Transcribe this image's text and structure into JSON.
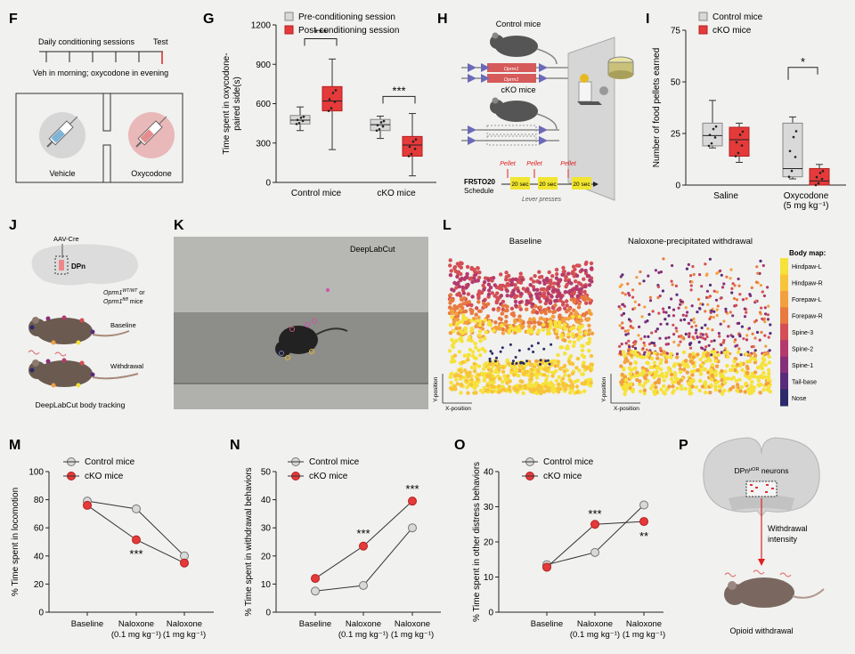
{
  "panels": {
    "F": {
      "letter": "F",
      "timeline_label": "Daily conditioning sessions",
      "test_label": "Test",
      "schedule_label": "Veh in morning; oxycodone in evening",
      "left_chamber": "Vehicle",
      "right_chamber": "Oxycodone"
    },
    "G": {
      "letter": "G",
      "significance": [
        "***",
        "***"
      ]
    },
    "H": {
      "letter": "H",
      "control_label": "Control mice",
      "cko_label": "cKO mice",
      "gene_labels": [
        "Oprm1",
        "Oprm1"
      ],
      "schedule_name": [
        "FR5TO20",
        "Schedule"
      ],
      "pellet_label": "Pellet",
      "timeout_label": "20 sec",
      "lever_label": "Lever presses"
    },
    "I": {
      "letter": "I",
      "significance": [
        "*"
      ]
    },
    "J": {
      "letter": "J",
      "virus_label": "AAV-Cre",
      "region_label": "DPn",
      "mice_label_1": "Oprm1",
      "mice_sup_1": "WT/WT",
      "mice_or": "or",
      "mice_label_2": "Oprm1",
      "mice_sup_2": "fl/fl",
      "mice_suffix": "mice",
      "baseline_label": "Baseline",
      "withdrawal_label": "Withdrawal",
      "caption": "DeepLabCut body tracking"
    },
    "K": {
      "letter": "K",
      "watermark": "DeepLabCut"
    },
    "L": {
      "letter": "L",
      "left_title": "Baseline",
      "right_title": "Naloxone-precipitated withdrawal",
      "ylabel": "Y-position",
      "xlabel": "X-position",
      "colorbar_title": "Body map:",
      "colorbar_labels": [
        "Hindpaw-L",
        "Hindpaw-R",
        "Forepaw-L",
        "Forepaw-R",
        "Spine-3",
        "Spine-2",
        "Spine-1",
        "Tail-base",
        "Nose"
      ],
      "colorbar_colors": [
        "#f6e23a",
        "#f8c43a",
        "#f3a03e",
        "#e8793f",
        "#d44f55",
        "#b33a6c",
        "#86307a",
        "#592c7a",
        "#2c2a6b"
      ]
    },
    "M": {
      "letter": "M",
      "significance": [
        "***"
      ]
    },
    "N": {
      "letter": "N",
      "significance": [
        "***",
        "***"
      ]
    },
    "O": {
      "letter": "O",
      "significance": [
        "***",
        "**"
      ]
    },
    "P": {
      "letter": "P",
      "neuron_label": "DPn",
      "neuron_sup": "μOR",
      "neuron_suffix": "neurons",
      "arrow_label": [
        "Withdrawal",
        "intensity"
      ],
      "caption": "Opioid withdrawal"
    }
  },
  "colors": {
    "control_fill": "#d9d9d9",
    "cko_fill": "#e53a3a",
    "cko_edge": "#b21f1f"
  },
  "chart_data": [
    {
      "id": "G",
      "type": "box",
      "title": "",
      "xlabel": "",
      "ylabel": "Time spent in oxycodone-\npaired side(s)",
      "ylim": [
        0,
        1200
      ],
      "yticks": [
        0,
        300,
        600,
        900,
        1200
      ],
      "categories": [
        "Control mice",
        "cKO mice"
      ],
      "series": [
        {
          "name": "Pre-conditioning session",
          "boxes": [
            {
              "min": 395,
              "q1": 445,
              "median": 475,
              "q3": 510,
              "max": 575
            },
            {
              "min": 335,
              "q1": 395,
              "median": 440,
              "q3": 480,
              "max": 505
            }
          ]
        },
        {
          "name": "Post-conditioning session",
          "boxes": [
            {
              "min": 250,
              "q1": 545,
              "median": 620,
              "q3": 730,
              "max": 940
            },
            {
              "min": 50,
              "q1": 200,
              "median": 285,
              "q3": 350,
              "max": 525
            }
          ]
        }
      ]
    },
    {
      "id": "I",
      "type": "box",
      "title": "",
      "xlabel": "",
      "ylabel": "Number of food pellets earned",
      "ylim": [
        0,
        75
      ],
      "yticks": [
        0,
        25,
        50,
        75
      ],
      "categories": [
        "Saline",
        "Oxycodone\n(5 mg kg⁻¹)"
      ],
      "series": [
        {
          "name": "Control mice",
          "boxes": [
            {
              "min": 18,
              "q1": 19,
              "median": 24,
              "q3": 30,
              "max": 41
            },
            {
              "min": 3,
              "q1": 4,
              "median": 8,
              "q3": 30,
              "max": 33
            }
          ]
        },
        {
          "name": "cKO mice",
          "boxes": [
            {
              "min": 11,
              "q1": 14,
              "median": 22,
              "q3": 28,
              "max": 30
            },
            {
              "min": 0,
              "q1": 0,
              "median": 2,
              "q3": 8,
              "max": 10
            }
          ]
        }
      ]
    },
    {
      "id": "M",
      "type": "line",
      "ylabel": "% Time spent in locomotion",
      "ylim": [
        0,
        100
      ],
      "yticks": [
        0,
        20,
        40,
        60,
        80,
        100
      ],
      "categories": [
        [
          "Baseline"
        ],
        [
          "Naloxone",
          "(0.1 mg kg⁻¹)"
        ],
        [
          "Naloxone",
          "(1 mg kg⁻¹)"
        ]
      ],
      "series": [
        {
          "name": "Control mice",
          "values": [
            79,
            73.5,
            40
          ]
        },
        {
          "name": "cKO mice",
          "values": [
            76,
            51.5,
            35
          ]
        }
      ]
    },
    {
      "id": "N",
      "type": "line",
      "ylabel": "% Time spent in withdrawal behaviors",
      "ylim": [
        0,
        50
      ],
      "yticks": [
        0,
        10,
        20,
        30,
        40,
        50
      ],
      "categories": [
        [
          "Baseline"
        ],
        [
          "Naloxone",
          "(0.1 mg kg⁻¹)"
        ],
        [
          "Naloxone",
          "(1 mg kg⁻¹)"
        ]
      ],
      "series": [
        {
          "name": "Control mice",
          "values": [
            7.5,
            9.5,
            30
          ]
        },
        {
          "name": "cKO mice",
          "values": [
            12,
            23.5,
            39.5
          ]
        }
      ]
    },
    {
      "id": "O",
      "type": "line",
      "ylabel": "% Time spent in other distress behaviors",
      "ylim": [
        0,
        40
      ],
      "yticks": [
        0,
        10,
        20,
        30,
        40
      ],
      "categories": [
        [
          "Baseline"
        ],
        [
          "Naloxone",
          "(0.1 mg kg⁻¹)"
        ],
        [
          "Naloxone",
          "(1 mg kg⁻¹)"
        ]
      ],
      "series": [
        {
          "name": "Control mice",
          "values": [
            13.5,
            17,
            30.5
          ]
        },
        {
          "name": "cKO mice",
          "values": [
            12.8,
            25,
            25.8
          ]
        }
      ]
    }
  ]
}
